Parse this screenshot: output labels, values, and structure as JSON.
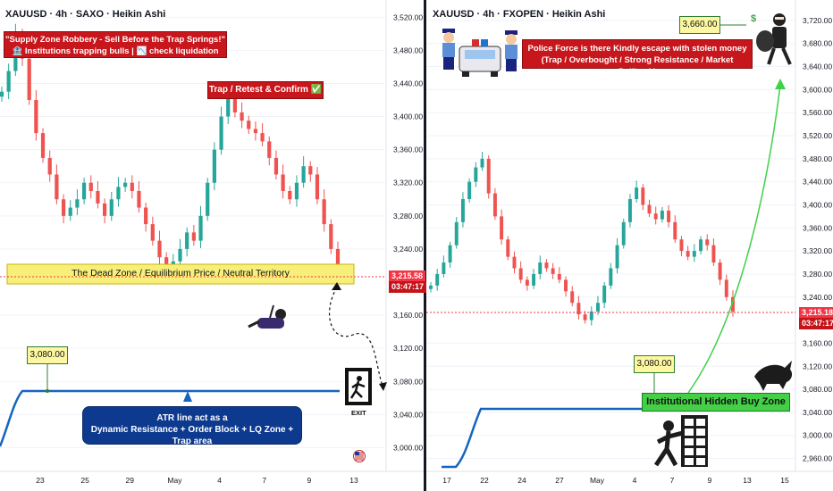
{
  "chart_data": [
    {
      "type": "candlestick",
      "title": "XAUUSD · 4h · SAXO · Heikin Ashi",
      "instrument": "XAUUSD",
      "timeframe": "4h",
      "source": "SAXO",
      "style": "Heikin Ashi",
      "ylim": [
        2980,
        3530
      ],
      "y_ticks": [
        "3,520.00",
        "3,480.00",
        "3,440.00",
        "3,400.00",
        "3,360.00",
        "3,320.00",
        "3,280.00",
        "3,240.00",
        "3,160.00",
        "3,120.00",
        "3,080.00",
        "3,040.00",
        "3,000.00"
      ],
      "x_ticks": [
        "23",
        "25",
        "29",
        "May",
        "4",
        "7",
        "9",
        "13"
      ],
      "last_price": "3,215.58",
      "countdown": "03:47:17",
      "price_path": [
        3430,
        3455,
        3500,
        3470,
        3420,
        3380,
        3350,
        3330,
        3300,
        3280,
        3290,
        3300,
        3320,
        3310,
        3295,
        3280,
        3300,
        3315,
        3320,
        3310,
        3290,
        3270,
        3250,
        3230,
        3215,
        3225,
        3240,
        3260,
        3250,
        3280,
        3320,
        3360,
        3400,
        3425,
        3405,
        3395,
        3385,
        3380,
        3370,
        3350,
        3330,
        3310,
        3300,
        3320,
        3340,
        3330,
        3300,
        3270,
        3240,
        3220
      ],
      "annotations": {
        "top_note_line1": "\"Supply Zone Robbery - Sell Before the Trap Springs!\"",
        "top_note_line2": "🏦 Institutions trapping bulls | 📉 check liquidation levels",
        "trap_note": "Trap / Retest & Confirm ✅",
        "dead_zone": "The Dead Zone / Equilibrium Price / Neutral Territory",
        "atr_callout": "3,080.00",
        "atr_line1": "ATR line act as a",
        "atr_line2": "Dynamic Resistance + Order Block + LQ Zone + Trap area",
        "exit_label": "EXIT"
      },
      "atr_line_level": 3080,
      "dead_zone_range": [
        3208,
        3232
      ]
    },
    {
      "type": "candlestick",
      "title": "XAUUSD · 4h · FXOPEN · Heikin Ashi",
      "instrument": "XAUUSD",
      "timeframe": "4h",
      "source": "FXOPEN",
      "style": "Heikin Ashi",
      "ylim": [
        2950,
        3740
      ],
      "y_ticks": [
        "3,720.00",
        "3,680.00",
        "3,640.00",
        "3,600.00",
        "3,560.00",
        "3,520.00",
        "3,480.00",
        "3,440.00",
        "3,400.00",
        "3,360.00",
        "3,320.00",
        "3,280.00",
        "3,240.00",
        "3,160.00",
        "3,120.00",
        "3,080.00",
        "3,040.00",
        "3,000.00",
        "2,960.00"
      ],
      "x_ticks": [
        "17",
        "22",
        "24",
        "27",
        "May",
        "4",
        "7",
        "9",
        "13",
        "15"
      ],
      "last_price": "3,215.18",
      "countdown": "03:47:17",
      "price_path": [
        3260,
        3280,
        3300,
        3330,
        3370,
        3410,
        3440,
        3465,
        3480,
        3420,
        3380,
        3340,
        3310,
        3290,
        3270,
        3260,
        3280,
        3300,
        3290,
        3280,
        3270,
        3250,
        3230,
        3210,
        3200,
        3215,
        3230,
        3260,
        3290,
        3330,
        3370,
        3410,
        3430,
        3400,
        3385,
        3375,
        3390,
        3370,
        3340,
        3320,
        3310,
        3320,
        3340,
        3330,
        3300,
        3270,
        3240,
        3215
      ],
      "annotations": {
        "police_line1": "Police Force is there Kindly escape with stolen money",
        "police_line2": "(Trap / Overbought / Strong Resistance / Market Pullback)",
        "target_callout": "3,660.00",
        "buy_callout": "3,080.00",
        "buy_zone": "Institutional Hidden Buy Zone"
      },
      "atr_line_level": 3050
    }
  ],
  "colors": {
    "up": "#26a69a",
    "down": "#ef5350",
    "atr_line": "#1565c0",
    "dead_zone": "#f7ef7a",
    "price_tag": "#f23645",
    "note_red": "#c7161c",
    "buy_zone": "#43d046",
    "target_arrow": "#3fd14a"
  },
  "icons": [
    "robber-diving-icon",
    "exit-door-icon",
    "us-flag-icon",
    "police-officer-icon",
    "police-car-icon",
    "robber-with-bag-icon",
    "bull-icon",
    "vault-robber-icon"
  ]
}
